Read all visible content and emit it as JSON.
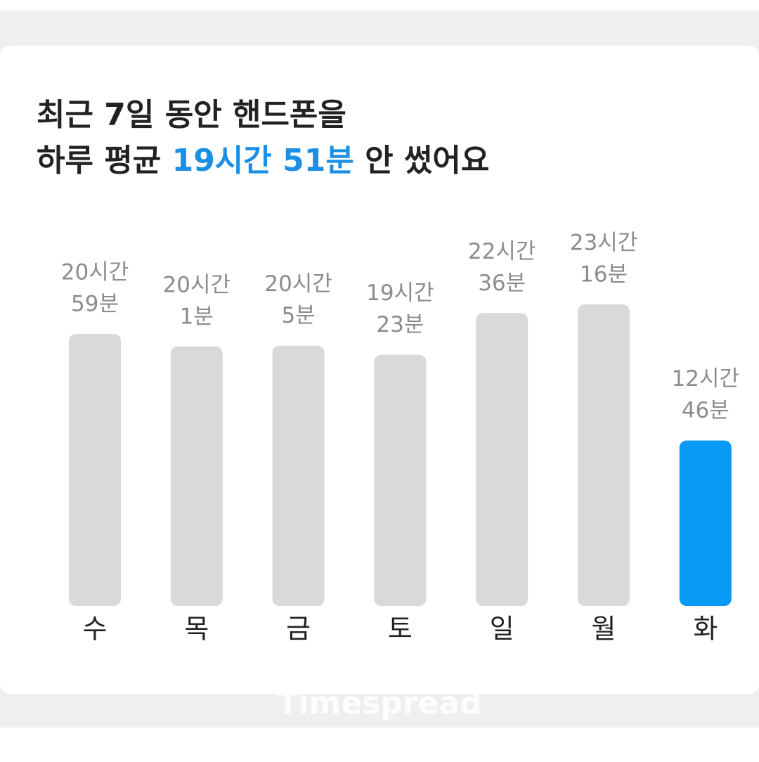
{
  "chart_data": {
    "type": "bar",
    "title": {
      "line1": "최근 7일 동안 핸드폰을",
      "line2": [
        "하루 평균",
        "19시간 51분",
        "안 썼어요"
      ]
    },
    "categories": [
      "수",
      "목",
      "금",
      "토",
      "일",
      "월",
      "화"
    ],
    "values": [
      1259,
      1201,
      1205,
      1163,
      1356,
      1396,
      766
    ],
    "value_labels": [
      [
        "20시간",
        "59분"
      ],
      [
        "20시간",
        "1분"
      ],
      [
        "20시간",
        "5분"
      ],
      [
        "19시간",
        "23분"
      ],
      [
        "22시간",
        "36분"
      ],
      [
        "23시간",
        "16분"
      ],
      [
        "12시간",
        "46분"
      ]
    ],
    "colors": [
      "#d9d9d9",
      "#d9d9d9",
      "#d9d9d9",
      "#d9d9d9",
      "#d9d9d9",
      "#d9d9d9",
      "#0a9af5"
    ],
    "highlight_color": "#1a8fe3",
    "watermark": "Timespread"
  }
}
